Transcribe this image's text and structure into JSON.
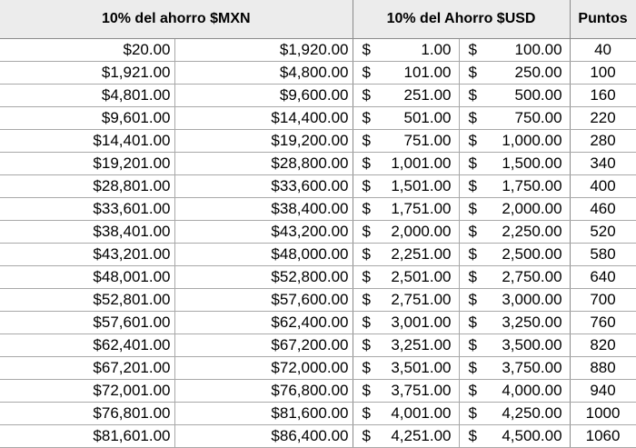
{
  "headers": {
    "mxn": "10% del ahorro $MXN",
    "usd": "10% del Ahorro $USD",
    "puntos": "Puntos"
  },
  "currency_symbol": "$",
  "rows": [
    {
      "mxn_from": "$20.00",
      "mxn_to": "$1,920.00",
      "usd_from": "1.00",
      "usd_to": "100.00",
      "puntos": "40"
    },
    {
      "mxn_from": "$1,921.00",
      "mxn_to": "$4,800.00",
      "usd_from": "101.00",
      "usd_to": "250.00",
      "puntos": "100"
    },
    {
      "mxn_from": "$4,801.00",
      "mxn_to": "$9,600.00",
      "usd_from": "251.00",
      "usd_to": "500.00",
      "puntos": "160"
    },
    {
      "mxn_from": "$9,601.00",
      "mxn_to": "$14,400.00",
      "usd_from": "501.00",
      "usd_to": "750.00",
      "puntos": "220"
    },
    {
      "mxn_from": "$14,401.00",
      "mxn_to": "$19,200.00",
      "usd_from": "751.00",
      "usd_to": "1,000.00",
      "puntos": "280"
    },
    {
      "mxn_from": "$19,201.00",
      "mxn_to": "$28,800.00",
      "usd_from": "1,001.00",
      "usd_to": "1,500.00",
      "puntos": "340"
    },
    {
      "mxn_from": "$28,801.00",
      "mxn_to": "$33,600.00",
      "usd_from": "1,501.00",
      "usd_to": "1,750.00",
      "puntos": "400"
    },
    {
      "mxn_from": "$33,601.00",
      "mxn_to": "$38,400.00",
      "usd_from": "1,751.00",
      "usd_to": "2,000.00",
      "puntos": "460"
    },
    {
      "mxn_from": "$38,401.00",
      "mxn_to": "$43,200.00",
      "usd_from": "2,000.00",
      "usd_to": "2,250.00",
      "puntos": "520"
    },
    {
      "mxn_from": "$43,201.00",
      "mxn_to": "$48,000.00",
      "usd_from": "2,251.00",
      "usd_to": "2,500.00",
      "puntos": "580"
    },
    {
      "mxn_from": "$48,001.00",
      "mxn_to": "$52,800.00",
      "usd_from": "2,501.00",
      "usd_to": "2,750.00",
      "puntos": "640"
    },
    {
      "mxn_from": "$52,801.00",
      "mxn_to": "$57,600.00",
      "usd_from": "2,751.00",
      "usd_to": "3,000.00",
      "puntos": "700"
    },
    {
      "mxn_from": "$57,601.00",
      "mxn_to": "$62,400.00",
      "usd_from": "3,001.00",
      "usd_to": "3,250.00",
      "puntos": "760"
    },
    {
      "mxn_from": "$62,401.00",
      "mxn_to": "$67,200.00",
      "usd_from": "3,251.00",
      "usd_to": "3,500.00",
      "puntos": "820"
    },
    {
      "mxn_from": "$67,201.00",
      "mxn_to": "$72,000.00",
      "usd_from": "3,501.00",
      "usd_to": "3,750.00",
      "puntos": "880"
    },
    {
      "mxn_from": "$72,001.00",
      "mxn_to": "$76,800.00",
      "usd_from": "3,751.00",
      "usd_to": "4,000.00",
      "puntos": "940"
    },
    {
      "mxn_from": "$76,801.00",
      "mxn_to": "$81,600.00",
      "usd_from": "4,001.00",
      "usd_to": "4,250.00",
      "puntos": "1000"
    },
    {
      "mxn_from": "$81,601.00",
      "mxn_to": "$86,400.00",
      "usd_from": "4,251.00",
      "usd_to": "4,500.00",
      "puntos": "1060"
    }
  ]
}
